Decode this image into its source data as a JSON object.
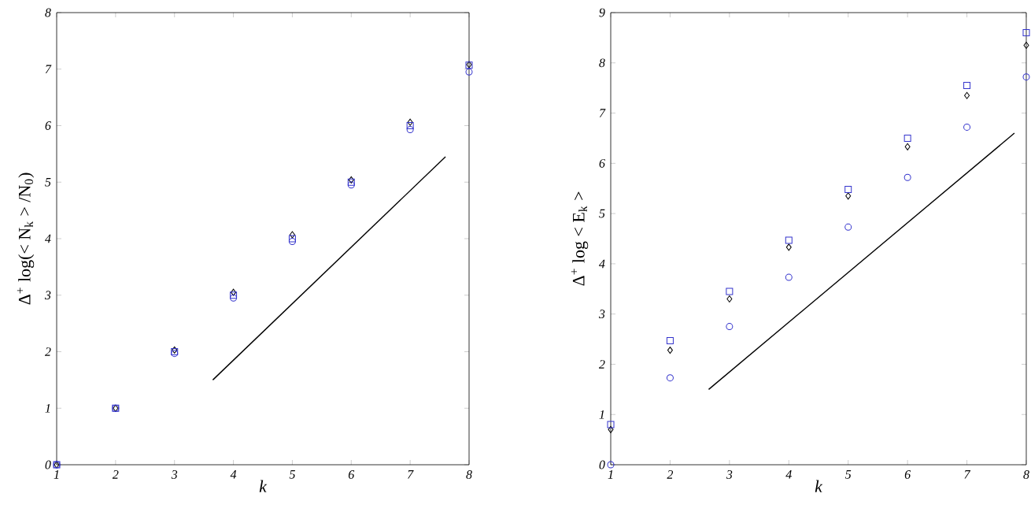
{
  "chart_data": [
    {
      "type": "scatter",
      "xlabel": "k",
      "ylabel": "Δ$^{+}$ log(< N$_{k}$ > /N$_{0}$)",
      "x": [
        1,
        2,
        3,
        4,
        5,
        6,
        7,
        8
      ],
      "xlim": [
        1,
        8
      ],
      "ylim": [
        0,
        8
      ],
      "xticks": [
        1,
        2,
        3,
        4,
        5,
        6,
        7,
        8
      ],
      "yticks": [
        0,
        1,
        2,
        3,
        4,
        5,
        6,
        7,
        8
      ],
      "grid": false,
      "series": [
        {
          "color": "#000000",
          "marker": "diamond",
          "values": [
            0,
            1,
            2.03,
            3.05,
            4.07,
            5.04,
            6.06,
            7.08
          ]
        },
        {
          "color": "#3333cc",
          "marker": "square",
          "values": [
            0,
            1,
            2.0,
            3.0,
            4.0,
            5.0,
            6.0,
            7.07
          ]
        },
        {
          "color": "#3333cc",
          "marker": "circle",
          "values": [
            0,
            1,
            1.97,
            2.95,
            3.95,
            4.95,
            5.93,
            6.95
          ]
        },
        {
          "type": "line",
          "color": "#000000",
          "marker": "none",
          "x": [
            3.65,
            7.6
          ],
          "values": [
            1.5,
            5.45
          ]
        }
      ]
    },
    {
      "type": "scatter",
      "xlabel": "k",
      "ylabel": "Δ$^{+}$ log < E$_{k}$ >",
      "x": [
        1,
        2,
        3,
        4,
        5,
        6,
        7,
        8
      ],
      "xlim": [
        1,
        8
      ],
      "ylim": [
        0,
        9
      ],
      "xticks": [
        1,
        2,
        3,
        4,
        5,
        6,
        7,
        8
      ],
      "yticks": [
        0,
        1,
        2,
        3,
        4,
        5,
        6,
        7,
        8,
        9
      ],
      "grid": false,
      "series": [
        {
          "color": "#000000",
          "marker": "diamond",
          "values": [
            0.7,
            2.28,
            3.3,
            4.33,
            5.35,
            6.33,
            7.35,
            8.35
          ]
        },
        {
          "color": "#3333cc",
          "marker": "square",
          "values": [
            0.8,
            2.47,
            3.45,
            4.47,
            5.48,
            6.5,
            7.55,
            8.6
          ]
        },
        {
          "color": "#3333cc",
          "marker": "circle",
          "values": [
            0.0,
            1.73,
            2.75,
            3.73,
            4.73,
            5.72,
            6.72,
            7.72
          ]
        },
        {
          "type": "line",
          "color": "#000000",
          "marker": "none",
          "x": [
            2.65,
            7.8
          ],
          "values": [
            1.5,
            6.6
          ]
        }
      ]
    }
  ]
}
